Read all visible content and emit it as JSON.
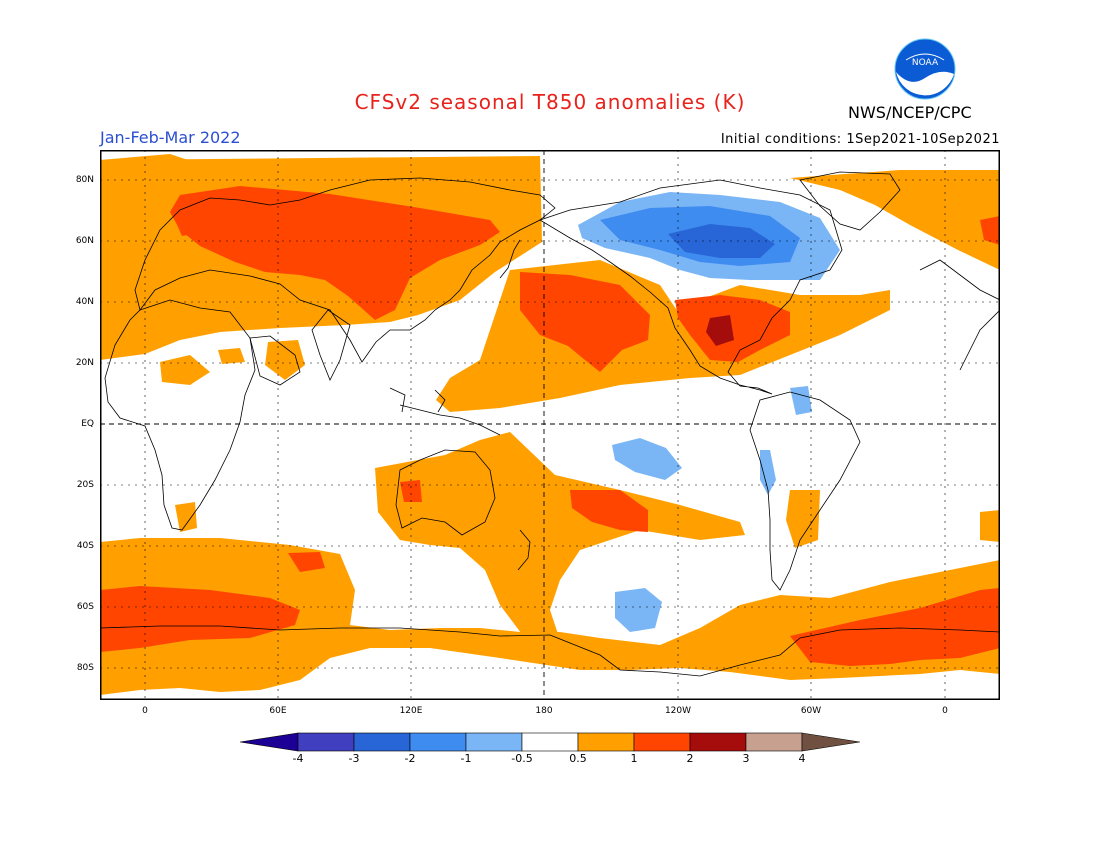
{
  "header": {
    "title": "CFSv2 seasonal T850 anomalies (K)",
    "agency": "NWS/NCEP/CPC",
    "season": "Jan-Feb-Mar 2022",
    "initial_conditions": "Initial conditions: 1Sep2021-10Sep2021",
    "logo_text": "NOAA"
  },
  "map": {
    "lat_labels": [
      "80N",
      "60N",
      "40N",
      "20N",
      "EQ",
      "20S",
      "40S",
      "60S",
      "80S"
    ],
    "lon_labels": [
      "0",
      "60E",
      "120E",
      "180",
      "120W",
      "60W",
      "0"
    ]
  },
  "colorbar": {
    "labels": [
      "-4",
      "-3",
      "-2",
      "-1",
      "-0.5",
      "0.5",
      "1",
      "2",
      "3",
      "4"
    ],
    "colors": [
      "#1c0096",
      "#3f3fc0",
      "#2865d6",
      "#3f8cf0",
      "#7ab6f5",
      "#ffffff",
      "#ffa000",
      "#ff4500",
      "#a50d0d",
      "#c8a090",
      "#705040"
    ]
  },
  "colors": {
    "t05": "#ffa000",
    "t1": "#ff4500",
    "t2": "#a50d0d",
    "cm05": "#7ab6f5",
    "cm1": "#3f8cf0",
    "cm2": "#2865d6"
  }
}
